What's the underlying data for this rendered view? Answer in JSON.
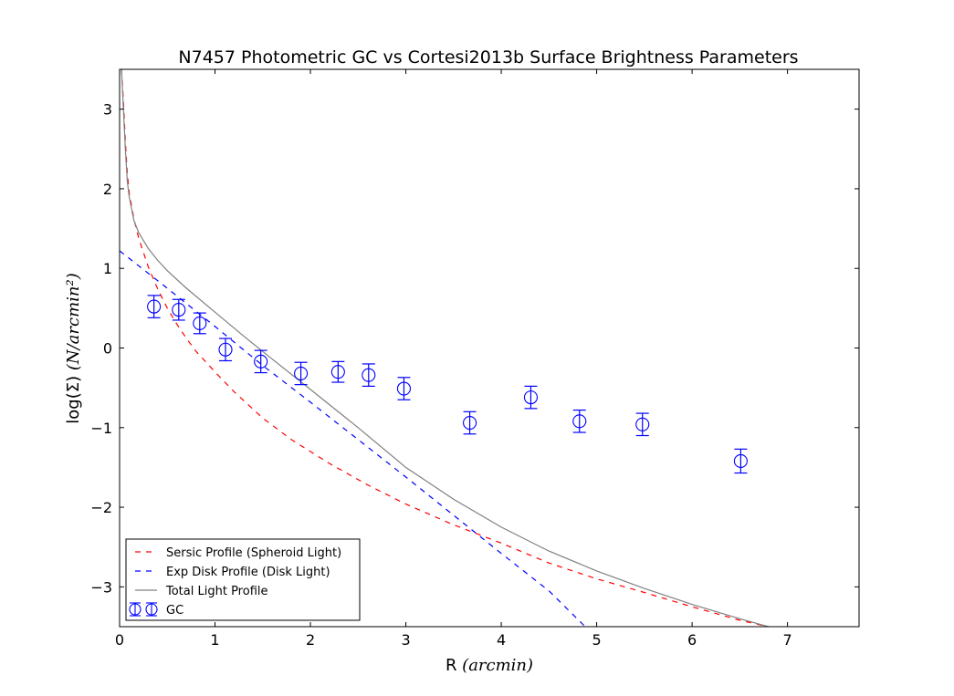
{
  "chart_data": {
    "type": "scatter",
    "title": "N7457 Photometric GC vs Cortesi2013b Surface Brightness Parameters",
    "xlabel": {
      "text": "R ",
      "math": "(arcmin)"
    },
    "ylabel": {
      "text": "log(Σ) ",
      "math": "(N/arcmin²)"
    },
    "xlim": [
      0,
      7.75
    ],
    "ylim": [
      -3.5,
      3.5
    ],
    "xticks": [
      0,
      1,
      2,
      3,
      4,
      5,
      6,
      7
    ],
    "yticks": [
      -3,
      -2,
      -1,
      0,
      1,
      2,
      3
    ],
    "xtick_labels": [
      "0",
      "1",
      "2",
      "3",
      "4",
      "5",
      "6",
      "7"
    ],
    "ytick_labels": [
      "−3",
      "−2",
      "−1",
      "0",
      "1",
      "2",
      "3"
    ],
    "grid": false,
    "legend_position": "lower-left",
    "series": [
      {
        "name": "Sersic Profile (Spheroid Light)",
        "style": "dashed",
        "color": "#ff0000",
        "points": [
          [
            0.02,
            3.5
          ],
          [
            0.04,
            3.1
          ],
          [
            0.06,
            2.6
          ],
          [
            0.08,
            2.2
          ],
          [
            0.1,
            1.95
          ],
          [
            0.15,
            1.62
          ],
          [
            0.2,
            1.38
          ],
          [
            0.3,
            1.02
          ],
          [
            0.4,
            0.74
          ],
          [
            0.5,
            0.5
          ],
          [
            0.6,
            0.3
          ],
          [
            0.7,
            0.12
          ],
          [
            0.8,
            -0.04
          ],
          [
            1.0,
            -0.3
          ],
          [
            1.2,
            -0.55
          ],
          [
            1.5,
            -0.88
          ],
          [
            1.8,
            -1.15
          ],
          [
            2.2,
            -1.45
          ],
          [
            2.6,
            -1.72
          ],
          [
            3.0,
            -1.96
          ],
          [
            3.5,
            -2.22
          ],
          [
            4.0,
            -2.45
          ],
          [
            4.5,
            -2.7
          ],
          [
            5.0,
            -2.9
          ],
          [
            5.5,
            -3.07
          ],
          [
            6.0,
            -3.25
          ],
          [
            6.5,
            -3.42
          ],
          [
            6.8,
            -3.5
          ]
        ]
      },
      {
        "name": "Exp Disk Profile (Disk Light)",
        "style": "dashed",
        "color": "#0000ff",
        "points": [
          [
            0.0,
            1.22
          ],
          [
            0.5,
            0.75
          ],
          [
            1.0,
            0.27
          ],
          [
            1.5,
            -0.22
          ],
          [
            2.0,
            -0.68
          ],
          [
            2.5,
            -1.15
          ],
          [
            3.0,
            -1.62
          ],
          [
            3.5,
            -2.1
          ],
          [
            4.0,
            -2.58
          ],
          [
            4.5,
            -3.05
          ],
          [
            4.88,
            -3.5
          ]
        ]
      },
      {
        "name": "Total Light Profile",
        "style": "solid",
        "color": "#808080",
        "points": [
          [
            0.02,
            3.5
          ],
          [
            0.04,
            3.0
          ],
          [
            0.06,
            2.5
          ],
          [
            0.08,
            2.1
          ],
          [
            0.1,
            1.9
          ],
          [
            0.15,
            1.6
          ],
          [
            0.2,
            1.45
          ],
          [
            0.3,
            1.25
          ],
          [
            0.4,
            1.1
          ],
          [
            0.5,
            0.97
          ],
          [
            0.7,
            0.75
          ],
          [
            1.0,
            0.45
          ],
          [
            1.3,
            0.15
          ],
          [
            1.6,
            -0.14
          ],
          [
            2.0,
            -0.52
          ],
          [
            2.5,
            -1.0
          ],
          [
            3.0,
            -1.5
          ],
          [
            3.5,
            -1.9
          ],
          [
            4.0,
            -2.25
          ],
          [
            4.5,
            -2.55
          ],
          [
            5.0,
            -2.8
          ],
          [
            5.5,
            -3.02
          ],
          [
            6.0,
            -3.22
          ],
          [
            6.5,
            -3.4
          ],
          [
            6.8,
            -3.5
          ]
        ]
      },
      {
        "name": "GC",
        "style": "errorbar",
        "marker": "open-circle",
        "color": "#0000ff",
        "points": [
          {
            "x": 0.36,
            "y": 0.52,
            "err": 0.14
          },
          {
            "x": 0.62,
            "y": 0.48,
            "err": 0.13
          },
          {
            "x": 0.84,
            "y": 0.31,
            "err": 0.13
          },
          {
            "x": 1.11,
            "y": -0.02,
            "err": 0.14
          },
          {
            "x": 1.48,
            "y": -0.17,
            "err": 0.14
          },
          {
            "x": 1.9,
            "y": -0.32,
            "err": 0.14
          },
          {
            "x": 2.29,
            "y": -0.3,
            "err": 0.13
          },
          {
            "x": 2.61,
            "y": -0.34,
            "err": 0.14
          },
          {
            "x": 2.98,
            "y": -0.51,
            "err": 0.14
          },
          {
            "x": 3.67,
            "y": -0.94,
            "err": 0.14
          },
          {
            "x": 4.31,
            "y": -0.62,
            "err": 0.14
          },
          {
            "x": 4.82,
            "y": -0.92,
            "err": 0.14
          },
          {
            "x": 5.48,
            "y": -0.96,
            "err": 0.14
          },
          {
            "x": 6.51,
            "y": -1.42,
            "err": 0.15
          }
        ]
      }
    ]
  }
}
